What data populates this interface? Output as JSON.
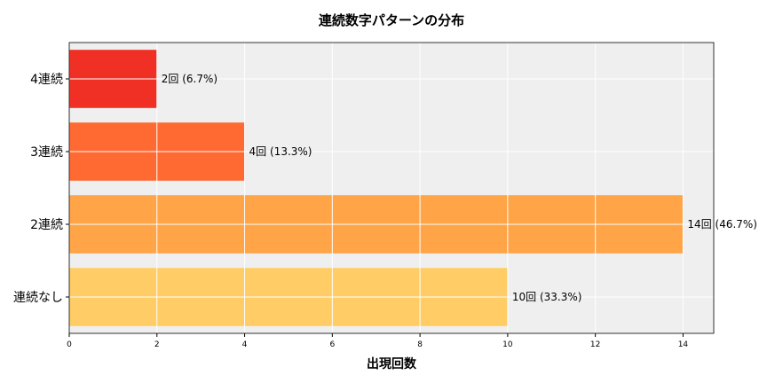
{
  "chart_data": {
    "type": "bar",
    "orientation": "horizontal",
    "title": "連続数字パターンの分布",
    "xlabel": "出現回数",
    "ylabel": "",
    "categories": [
      "4連続",
      "3連続",
      "2連続",
      "連続なし"
    ],
    "values": [
      2,
      4,
      14,
      10
    ],
    "data_labels": [
      "2回 (6.7%)",
      "4回 (13.3%)",
      "14回 (46.7%)",
      "10回 (33.3%)"
    ],
    "colors": [
      "#f03024",
      "#ff6a33",
      "#ffa447",
      "#ffcc66"
    ],
    "xlim": [
      0,
      14.7
    ],
    "xticks": [
      0,
      2,
      4,
      6,
      8,
      10,
      12,
      14
    ],
    "grid": true,
    "background": "#efefef"
  }
}
